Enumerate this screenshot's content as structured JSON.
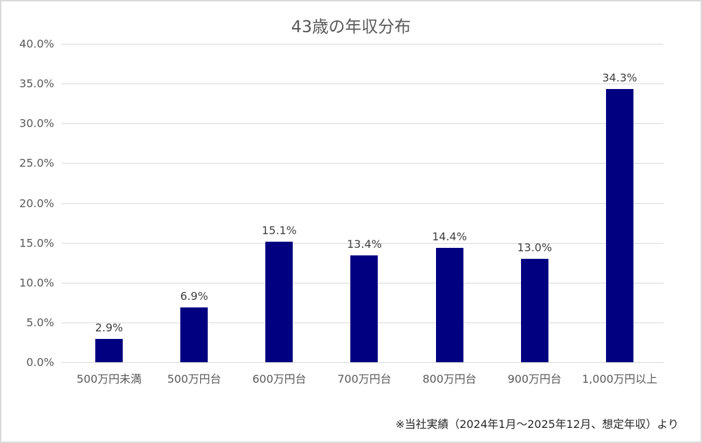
{
  "chart_data": {
    "type": "bar",
    "title": "43歳の年収分布",
    "categories": [
      "500万円未満",
      "500万円台",
      "600万円台",
      "700万円台",
      "800万円台",
      "900万円台",
      "1,000万円以上"
    ],
    "values": [
      2.9,
      6.9,
      15.1,
      13.4,
      14.4,
      13.0,
      34.3
    ],
    "data_labels": [
      "2.9%",
      "6.9%",
      "15.1%",
      "13.4%",
      "14.4%",
      "13.0%",
      "34.3%"
    ],
    "xlabel": "",
    "ylabel": "",
    "ylim": [
      0,
      40
    ],
    "ytick_step": 5,
    "ytick_labels": [
      "0.0%",
      "5.0%",
      "10.0%",
      "15.0%",
      "20.0%",
      "25.0%",
      "30.0%",
      "35.0%",
      "40.0%"
    ],
    "grid": true,
    "legend": "none",
    "bar_color": "#000080",
    "footnote": "※当社実績（2024年1月～2025年12月、想定年収）より"
  },
  "colors": {
    "bar": "#000080",
    "gridline": "#d9d9d9",
    "title_text": "#595959",
    "axis_text": "#595959",
    "data_label_text": "#404040",
    "footnote_text": "#262626",
    "background": "#ffffff",
    "border": "#d9d9d9"
  }
}
